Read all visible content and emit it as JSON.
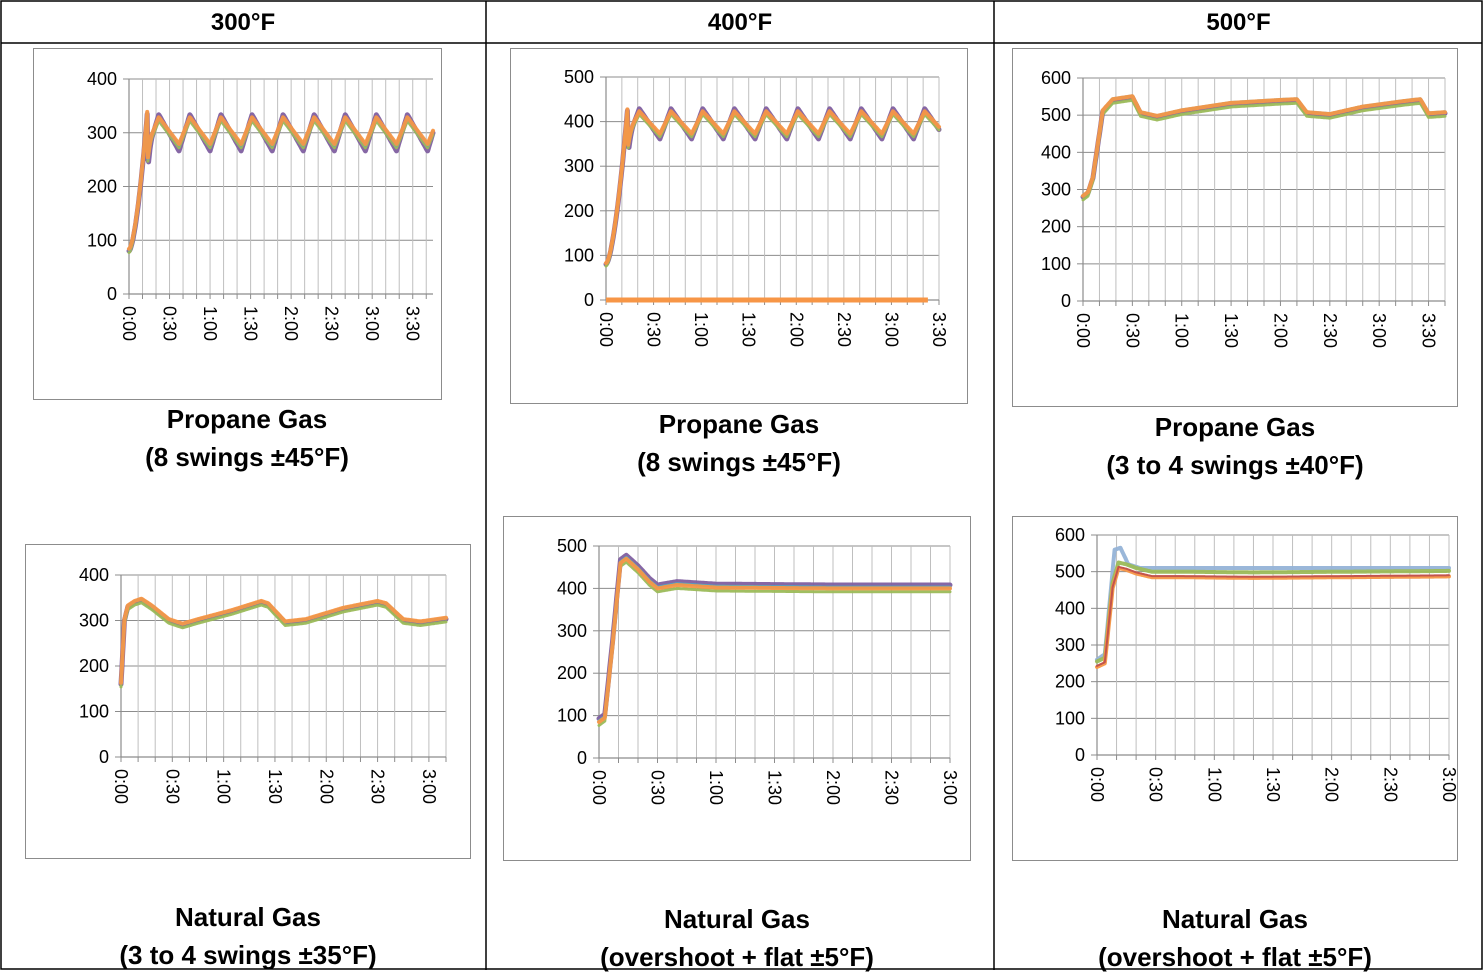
{
  "headers": [
    "300°F",
    "400°F",
    "500°F"
  ],
  "captions": [
    {
      "line1": "Propane Gas",
      "line2": "(8 swings ±45°F)"
    },
    {
      "line1": "Propane Gas",
      "line2": "(8 swings ±45°F)"
    },
    {
      "line1": "Propane Gas",
      "line2": "(3 to 4 swings ±40°F)"
    },
    {
      "line1": "Natural Gas",
      "line2": "(3 to 4 swings ±35°F)"
    },
    {
      "line1": "Natural Gas",
      "line2": "(overshoot + flat ±5°F)"
    },
    {
      "line1": "Natural Gas",
      "line2": "(overshoot + flat ±5°F)"
    }
  ],
  "colors": {
    "purple": "#7f5fa0",
    "orange": "#f79646",
    "green": "#9bbb59",
    "teal": "#4bacc6",
    "blue": "#4f81bd",
    "lightblue": "#95b3d7",
    "red": "#c0504d"
  },
  "chart_data": [
    {
      "type": "line",
      "panel": "300°F Propane Gas",
      "yticks": [
        "0",
        "100",
        "200",
        "300",
        "400"
      ],
      "ylim": [
        0,
        400
      ],
      "xticks": [
        "0:00",
        "0:30",
        "1:00",
        "1:30",
        "2:00",
        "2:30",
        "3:00",
        "3:30"
      ],
      "xlim_minutes": [
        0,
        225
      ],
      "pattern": {
        "kind": "oscillating",
        "start": 80,
        "peak": 350,
        "mean": 300,
        "amplitude": 25,
        "period_min": 23,
        "rise_min": 14
      },
      "series": [
        {
          "color": "purple",
          "offset": 0,
          "width": 5
        },
        {
          "color": "green",
          "offset": -3,
          "width": 3
        },
        {
          "color": "teal",
          "offset": 2,
          "width": 3
        },
        {
          "color": "orange",
          "offset": 4,
          "width": 4
        }
      ]
    },
    {
      "type": "line",
      "panel": "400°F Propane Gas",
      "yticks": [
        "0",
        "100",
        "200",
        "300",
        "400",
        "500"
      ],
      "ylim": [
        0,
        500
      ],
      "xticks": [
        "0:00",
        "0:30",
        "1:00",
        "1:30",
        "2:00",
        "2:30",
        "3:00",
        "3:30"
      ],
      "xlim_minutes": [
        0,
        210
      ],
      "pattern": {
        "kind": "oscillating",
        "start": 80,
        "peak": 445,
        "mean": 395,
        "amplitude": 25,
        "period_min": 20,
        "rise_min": 14
      },
      "zero_line": {
        "color": "orange",
        "y": 0,
        "x_end_minutes": 203
      },
      "series": [
        {
          "color": "purple",
          "offset": 0,
          "width": 5
        },
        {
          "color": "green",
          "offset": -4,
          "width": 3
        },
        {
          "color": "orange",
          "offset": 3,
          "width": 4
        }
      ]
    },
    {
      "type": "line",
      "panel": "500°F Propane Gas",
      "yticks": [
        "0",
        "100",
        "200",
        "300",
        "400",
        "500",
        "600"
      ],
      "ylim": [
        0,
        600
      ],
      "xticks": [
        "0:00",
        "0:30",
        "1:00",
        "1:30",
        "2:00",
        "2:30",
        "3:00",
        "3:30"
      ],
      "xlim_minutes": [
        0,
        220
      ],
      "pattern": {
        "kind": "ramp",
        "start": 280,
        "peak": 550,
        "rise_min": 18,
        "points": [
          [
            0,
            280
          ],
          [
            3,
            290
          ],
          [
            6,
            330
          ],
          [
            12,
            510
          ],
          [
            18,
            540
          ],
          [
            30,
            548
          ],
          [
            35,
            505
          ],
          [
            45,
            495
          ],
          [
            60,
            510
          ],
          [
            90,
            530
          ],
          [
            120,
            538
          ],
          [
            130,
            540
          ],
          [
            136,
            505
          ],
          [
            150,
            500
          ],
          [
            170,
            520
          ],
          [
            195,
            535
          ],
          [
            205,
            540
          ],
          [
            210,
            502
          ],
          [
            220,
            505
          ]
        ]
      },
      "series": [
        {
          "color": "purple",
          "offset": 0,
          "width": 5
        },
        {
          "color": "green",
          "offset": -8,
          "width": 3
        },
        {
          "color": "teal",
          "offset": 4,
          "width": 3
        },
        {
          "color": "orange",
          "offset": 3,
          "width": 4
        }
      ]
    },
    {
      "type": "line",
      "panel": "300°F Natural Gas",
      "yticks": [
        "0",
        "100",
        "200",
        "300",
        "400"
      ],
      "ylim": [
        0,
        400
      ],
      "xticks": [
        "0:00",
        "0:30",
        "1:00",
        "1:30",
        "2:00",
        "2:30",
        "3:00"
      ],
      "xlim_minutes": [
        0,
        190
      ],
      "pattern": {
        "kind": "path",
        "points": [
          [
            0,
            160
          ],
          [
            2,
            300
          ],
          [
            4,
            330
          ],
          [
            8,
            340
          ],
          [
            12,
            345
          ],
          [
            18,
            330
          ],
          [
            28,
            300
          ],
          [
            36,
            290
          ],
          [
            45,
            300
          ],
          [
            65,
            320
          ],
          [
            82,
            340
          ],
          [
            86,
            335
          ],
          [
            96,
            295
          ],
          [
            108,
            300
          ],
          [
            130,
            325
          ],
          [
            150,
            340
          ],
          [
            155,
            335
          ],
          [
            165,
            300
          ],
          [
            175,
            295
          ],
          [
            190,
            303
          ]
        ]
      },
      "series": [
        {
          "color": "purple",
          "offset": 0,
          "width": 5
        },
        {
          "color": "green",
          "offset": -6,
          "width": 3
        },
        {
          "color": "teal",
          "offset": 2,
          "width": 3
        },
        {
          "color": "orange",
          "offset": 3,
          "width": 4
        }
      ]
    },
    {
      "type": "line",
      "panel": "400°F Natural Gas",
      "yticks": [
        "0",
        "100",
        "200",
        "300",
        "400",
        "500"
      ],
      "ylim": [
        0,
        500
      ],
      "xticks": [
        "0:00",
        "0:30",
        "1:00",
        "1:30",
        "2:00",
        "2:30",
        "3:00"
      ],
      "xlim_minutes": [
        0,
        180
      ],
      "pattern": {
        "kind": "path",
        "points": [
          [
            0,
            85
          ],
          [
            3,
            95
          ],
          [
            7,
            270
          ],
          [
            11,
            460
          ],
          [
            14,
            470
          ],
          [
            20,
            445
          ],
          [
            26,
            415
          ],
          [
            30,
            400
          ],
          [
            40,
            408
          ],
          [
            60,
            402
          ],
          [
            120,
            400
          ],
          [
            180,
            400
          ]
        ]
      },
      "series": [
        {
          "color": "purple",
          "offset": 8,
          "width": 5
        },
        {
          "color": "green",
          "offset": -8,
          "width": 3
        },
        {
          "color": "teal",
          "offset": 3,
          "width": 3
        },
        {
          "color": "orange",
          "offset": 0,
          "width": 4
        }
      ]
    },
    {
      "type": "line",
      "panel": "500°F Natural Gas",
      "yticks": [
        "0",
        "100",
        "200",
        "300",
        "400",
        "500",
        "600"
      ],
      "ylim": [
        0,
        600
      ],
      "xticks": [
        "0:00",
        "0:30",
        "1:00",
        "1:30",
        "2:00",
        "2:30",
        "3:00"
      ],
      "xlim_minutes": [
        0,
        180
      ],
      "pattern": {
        "kind": "path",
        "points": [
          [
            0,
            255
          ],
          [
            4,
            265
          ],
          [
            8,
            470
          ],
          [
            11,
            525
          ],
          [
            15,
            520
          ],
          [
            20,
            510
          ],
          [
            28,
            500
          ],
          [
            40,
            500
          ],
          [
            80,
            498
          ],
          [
            180,
            502
          ]
        ]
      },
      "series": [
        {
          "color": "lightblue",
          "offset": 0,
          "width": 4,
          "override": [
            [
              0,
              260
            ],
            [
              4,
              275
            ],
            [
              9,
              560
            ],
            [
              12,
              565
            ],
            [
              16,
              520
            ],
            [
              22,
              510
            ],
            [
              40,
              510
            ],
            [
              180,
              510
            ]
          ]
        },
        {
          "color": "green",
          "offset": 0,
          "width": 4
        },
        {
          "color": "orange",
          "offset": -15,
          "width": 4
        },
        {
          "color": "red",
          "offset": -12,
          "width": 2
        }
      ]
    }
  ]
}
